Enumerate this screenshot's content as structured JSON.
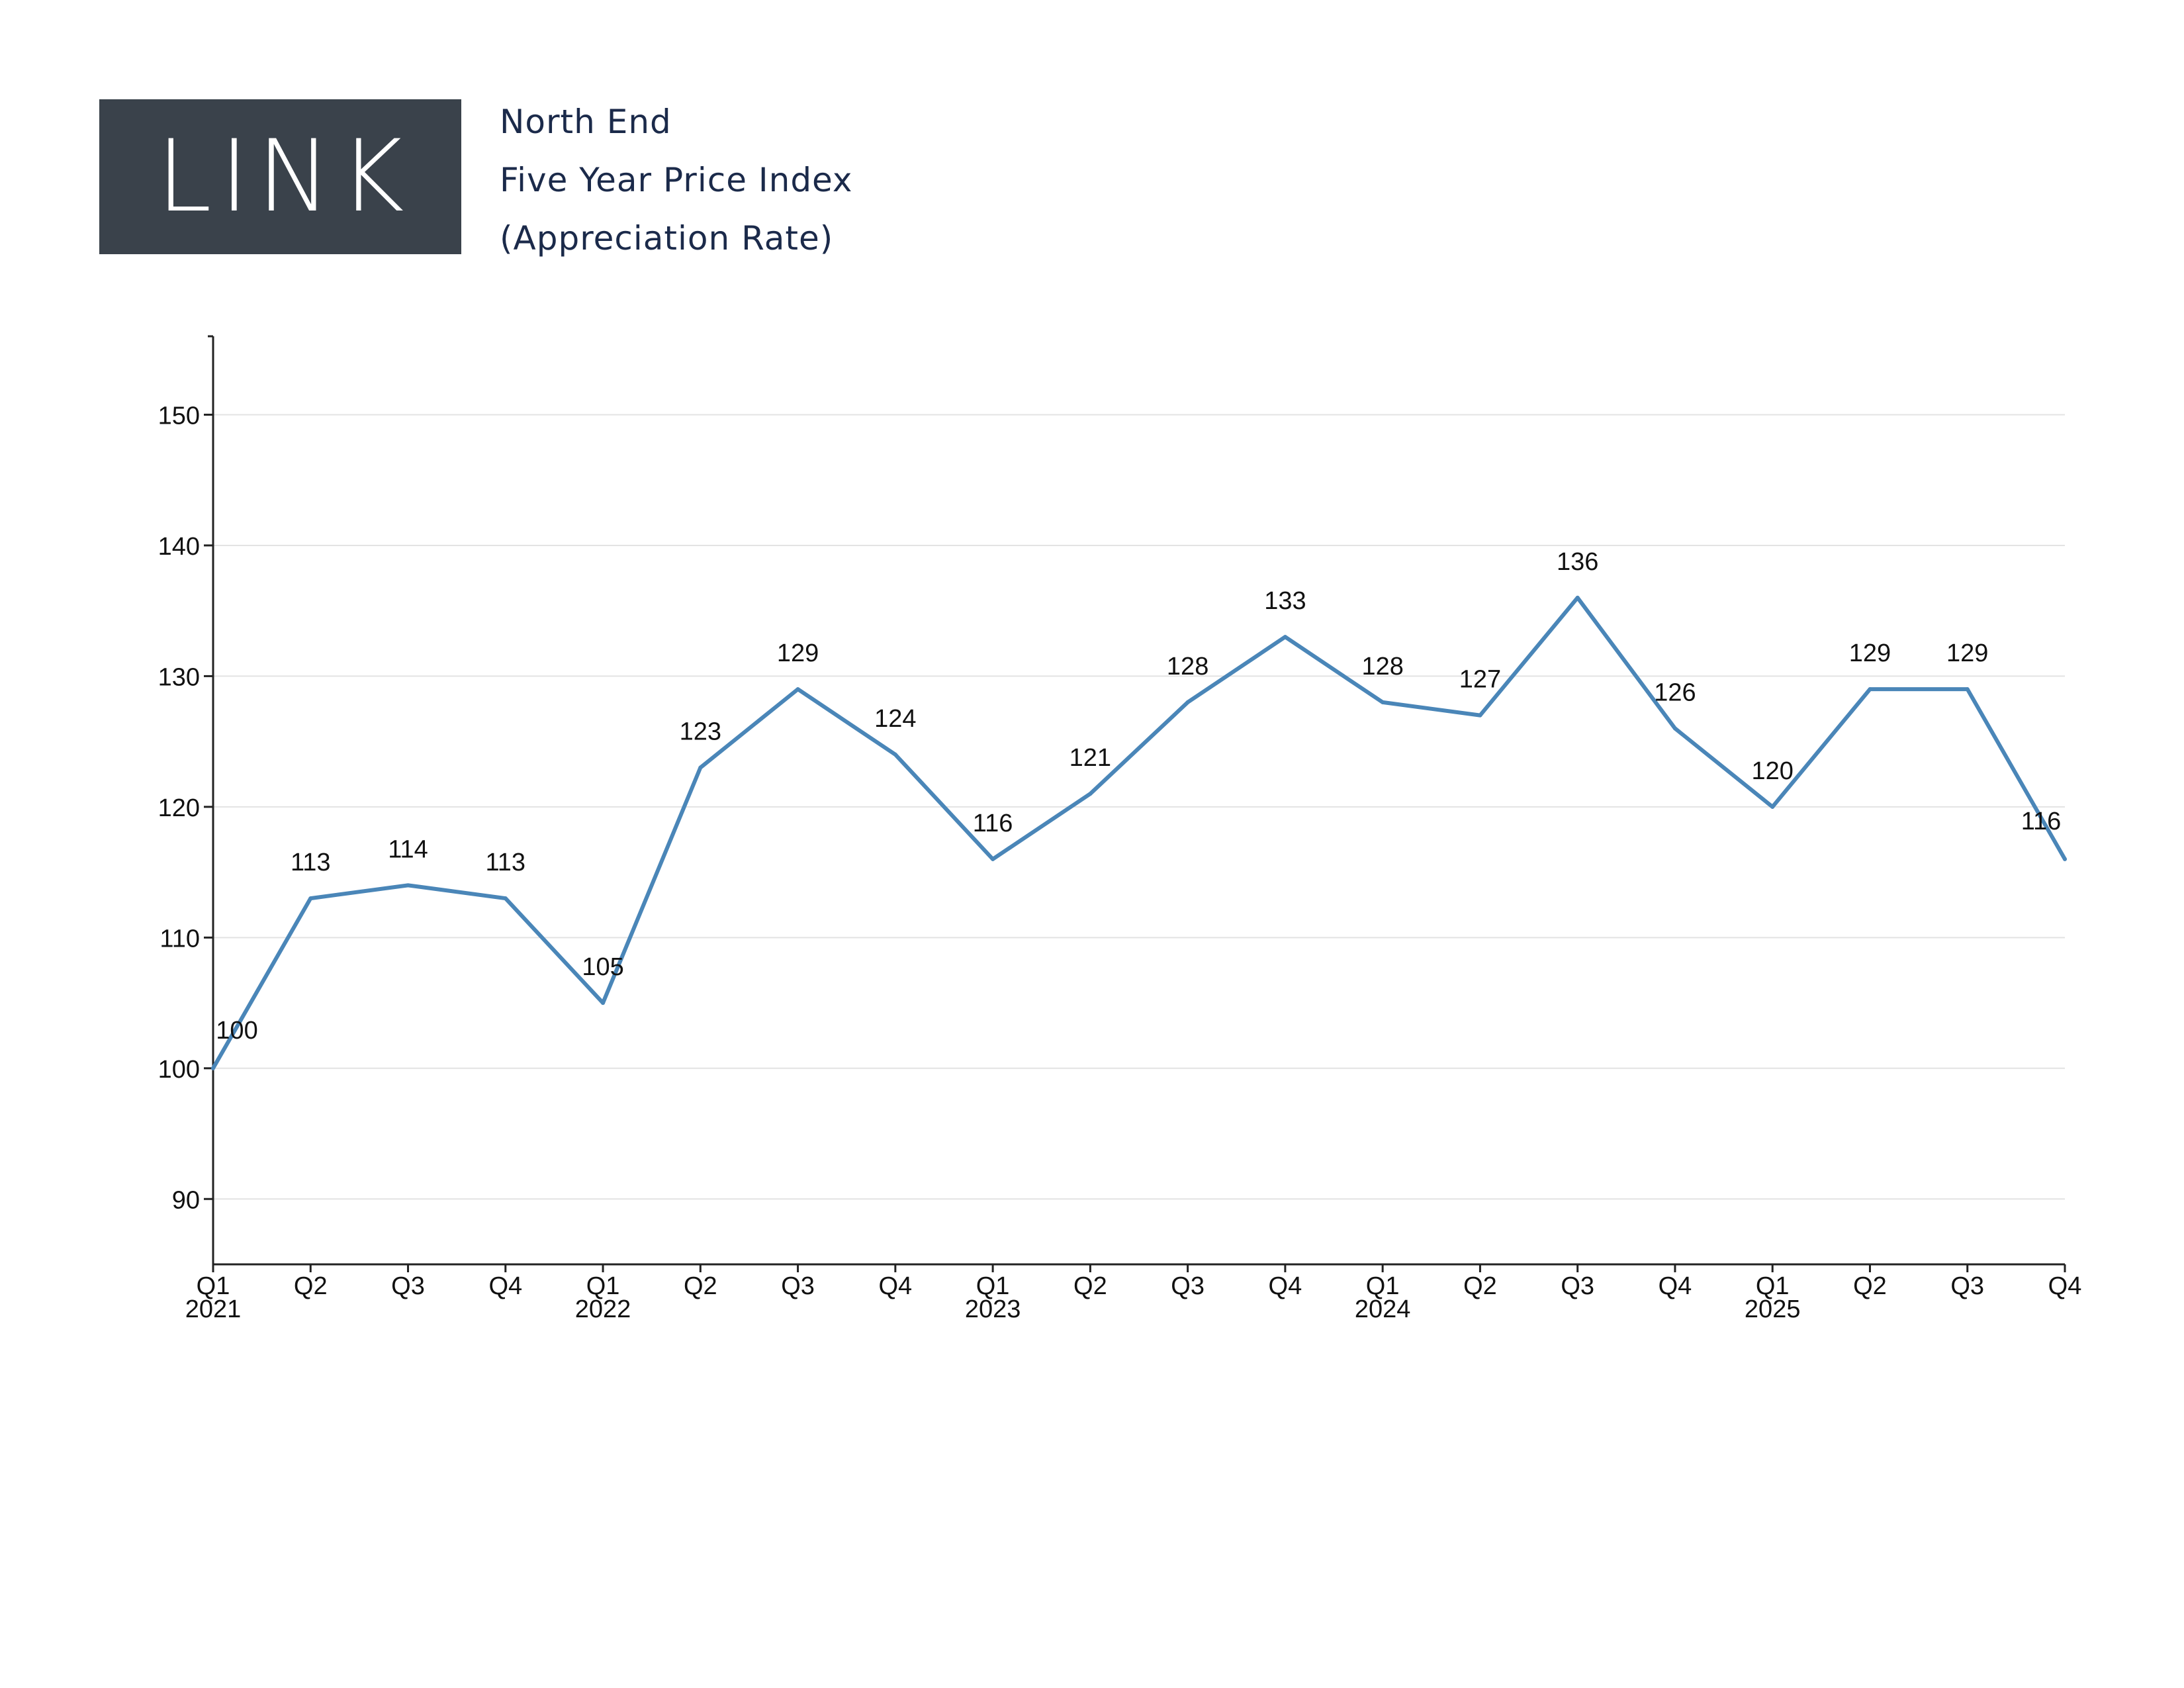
{
  "brand": {
    "logo_text": "LINK",
    "logo_bg": "#3a424b"
  },
  "header": {
    "line1": "North End",
    "line2": "Five Year Price Index",
    "line3": "(Appreciation Rate)"
  },
  "colors": {
    "line": "#4a86b8",
    "grid": "#e3e3e3",
    "axis": "#222222",
    "title": "#1b2a4a"
  },
  "chart_data": {
    "type": "line",
    "title": "",
    "xlabel": "",
    "ylabel": "",
    "ylim": [
      85,
      156
    ],
    "yticks": [
      90,
      100,
      110,
      120,
      130,
      140,
      150
    ],
    "grid": true,
    "categories": [
      "Q1",
      "Q2",
      "Q3",
      "Q4",
      "Q1",
      "Q2",
      "Q3",
      "Q4",
      "Q1",
      "Q2",
      "Q3",
      "Q4",
      "Q1",
      "Q2",
      "Q3",
      "Q4",
      "Q1",
      "Q2",
      "Q3",
      "Q4"
    ],
    "year_labels": [
      "2021",
      "",
      "",
      "",
      "2022",
      "",
      "",
      "",
      "2023",
      "",
      "",
      "",
      "2024",
      "",
      "",
      "",
      "2025",
      "",
      "",
      ""
    ],
    "series": [
      {
        "values": [
          100,
          113,
          114,
          113,
          105,
          123,
          129,
          124,
          116,
          121,
          128,
          133,
          128,
          127,
          136,
          126,
          120,
          129,
          129,
          116
        ],
        "labels": [
          "100",
          "113",
          "114",
          "113",
          "105",
          "123",
          "129",
          "124",
          "116",
          "121",
          "128",
          "133",
          "128",
          "127",
          "136",
          "126",
          "120",
          "129",
          "129",
          "116"
        ]
      }
    ]
  }
}
